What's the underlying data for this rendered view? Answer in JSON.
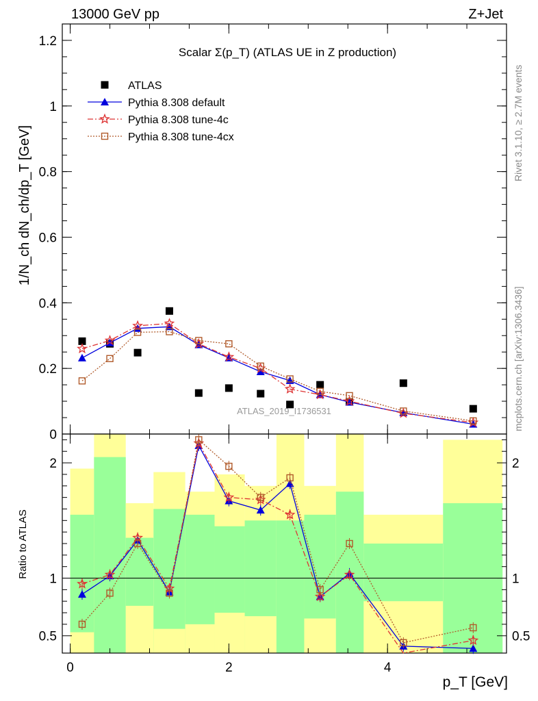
{
  "header": {
    "left": "13000 GeV pp",
    "right": "Z+Jet"
  },
  "side_labels": {
    "rivet": "Rivet 3.1.10, ≥ 2.7M events",
    "mcplots": "mcplots.cern.ch [arXiv:1306.3436]"
  },
  "chart_data": {
    "type": "scatter",
    "title": "Scalar Σ(p_T) (ATLAS UE in Z production)",
    "analysis_label": "ATLAS_2019_I1736531",
    "xlabel": "p_T [GeV]",
    "ylabel": "1/N_ch dN_ch/dp_T [GeV]",
    "ratio_ylabel": "Ratio to ATLAS",
    "xlim": [
      -0.1,
      5.5
    ],
    "ylim": [
      0,
      1.25
    ],
    "ratio_ylim": [
      0.35,
      2.25
    ],
    "x_ticks": [
      "0",
      "2",
      "4"
    ],
    "y_ticks": [
      "0",
      "0.2",
      "0.4",
      "0.6",
      "0.8",
      "1",
      "1.2"
    ],
    "ratio_y_ticks": [
      "0.5",
      "1",
      "2"
    ],
    "grid": false,
    "legend_position": "top-left",
    "x": [
      0.15,
      0.5,
      0.85,
      1.25,
      1.62,
      2.0,
      2.4,
      2.77,
      3.15,
      3.52,
      4.2,
      5.08
    ],
    "series": [
      {
        "name": "ATLAS",
        "color": "#000000",
        "marker": "square-filled",
        "values": [
          0.283,
          0.275,
          0.248,
          0.375,
          0.125,
          0.14,
          0.123,
          0.09,
          0.15,
          0.098,
          0.155,
          0.077
        ]
      },
      {
        "name": "Pythia 8.308 default",
        "color": "#0000dd",
        "marker": "triangle-filled",
        "line": "solid",
        "values": [
          0.232,
          0.278,
          0.322,
          0.327,
          0.272,
          0.232,
          0.19,
          0.163,
          0.12,
          0.097,
          0.065,
          0.03
        ],
        "ratio": [
          0.86,
          1.02,
          1.33,
          0.88,
          2.15,
          1.67,
          1.59,
          1.82,
          0.84,
          1.04,
          0.41,
          0.39
        ]
      },
      {
        "name": "Pythia 8.308 tune-4c",
        "color": "#dd3333",
        "marker": "star-open",
        "line": "dashdot",
        "values": [
          0.26,
          0.285,
          0.33,
          0.337,
          0.275,
          0.235,
          0.2,
          0.137,
          0.12,
          0.1,
          0.063,
          0.035
        ],
        "ratio": [
          0.95,
          1.03,
          1.35,
          0.91,
          2.17,
          1.7,
          1.68,
          1.55,
          0.84,
          1.03,
          0.33,
          0.46
        ]
      },
      {
        "name": "Pythia 8.308 tune-4cx",
        "color": "#b05a2a",
        "marker": "square-open",
        "line": "dotted",
        "values": [
          0.162,
          0.23,
          0.31,
          0.312,
          0.285,
          0.275,
          0.207,
          0.168,
          0.13,
          0.117,
          0.07,
          0.04
        ],
        "ratio": [
          0.6,
          0.87,
          1.3,
          0.87,
          2.2,
          1.97,
          1.7,
          1.87,
          0.9,
          1.3,
          0.44,
          0.57
        ]
      }
    ],
    "uncertainty_bands": {
      "edges": [
        0.0,
        0.3,
        0.7,
        1.05,
        1.45,
        1.82,
        2.2,
        2.6,
        2.95,
        3.35,
        3.7,
        4.7,
        5.45
      ],
      "green_low": [
        0.53,
        0.35,
        0.35,
        0.35,
        0.35,
        0.35,
        0.35,
        0.35,
        0.35,
        0.35,
        0.35,
        0.35
      ],
      "green_high": [
        1.55,
        2.05,
        1.35,
        1.6,
        1.55,
        1.45,
        1.5,
        1.5,
        1.55,
        1.75,
        1.3,
        1.65
      ],
      "yellow_low": [
        0.35,
        0.35,
        0.38,
        0.35,
        0.35,
        0.35,
        0.35,
        0.35,
        0.35,
        0.35,
        0.35,
        0.35
      ],
      "yellow_high": [
        1.95,
        2.25,
        1.65,
        1.92,
        1.75,
        1.9,
        1.8,
        2.25,
        1.8,
        2.25,
        1.55,
        2.2
      ],
      "yellow_inner_low": [
        0.53,
        0.35,
        0.76,
        0.56,
        0.6,
        0.7,
        0.67,
        0.35,
        0.65,
        0.35,
        0.8,
        0.35
      ],
      "yellow_inner_high": [
        0.53,
        0.35,
        0.76,
        0.56,
        0.6,
        0.7,
        0.67,
        0.35,
        0.65,
        0.35,
        0.8,
        0.35
      ]
    }
  }
}
